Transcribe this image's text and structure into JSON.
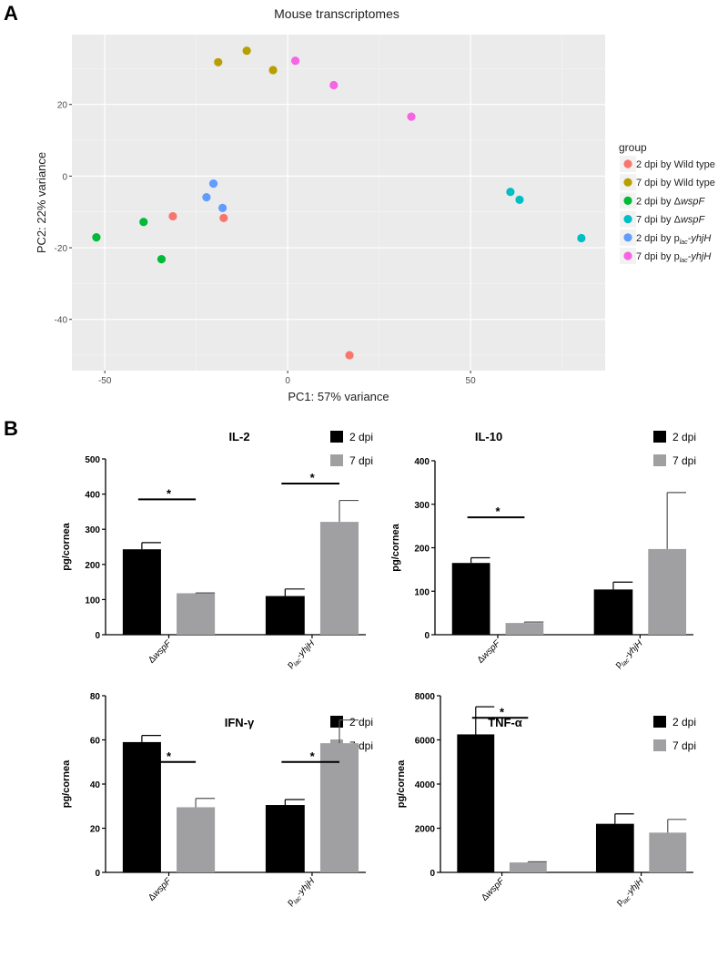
{
  "panels": {
    "a": "A",
    "b": "B"
  },
  "chart_data": [
    {
      "type": "scatter",
      "title": "Mouse transcriptomes",
      "xlabel": "PC1: 57% variance",
      "ylabel": "PC2: 22% variance",
      "xlim": [
        -59,
        86.8
      ],
      "ylim": [
        -54.3,
        39.5
      ],
      "xticks": [
        -50,
        0,
        50
      ],
      "yticks": [
        -40,
        -20,
        0,
        20
      ],
      "grid": true,
      "legend_title": "group",
      "legend_position": "right",
      "series": [
        {
          "name": "2 dpi by Wild type",
          "label": {
            "pre": "2 dpi by Wild type"
          },
          "color": "#F8766D",
          "points": [
            [
              -31.4,
              -11.2
            ],
            [
              -17.5,
              -11.7
            ],
            [
              16.9,
              -50.0
            ]
          ]
        },
        {
          "name": "7 dpi by Wild type",
          "label": {
            "pre": "7 dpi by Wild type"
          },
          "color": "#B79F00",
          "points": [
            [
              -19.0,
              31.8
            ],
            [
              -11.2,
              35.0
            ],
            [
              -4.0,
              29.6
            ]
          ]
        },
        {
          "name": "2 dpi by ΔwspF",
          "label": {
            "pre": "2 dpi by Δ",
            "it": "wspF"
          },
          "color": "#00BA38",
          "points": [
            [
              -52.3,
              -17.1
            ],
            [
              -39.4,
              -12.8
            ],
            [
              -34.5,
              -23.2
            ]
          ]
        },
        {
          "name": "7 dpi by ΔwspF",
          "label": {
            "pre": "7 dpi by Δ",
            "it": "wspF"
          },
          "color": "#00BFC4",
          "points": [
            [
              60.9,
              -4.4
            ],
            [
              63.4,
              -6.6
            ],
            [
              80.3,
              -17.3
            ]
          ]
        },
        {
          "name": "2 dpi by plac-yhjH",
          "label": {
            "pre": "2 dpi by p",
            "sub": "lac",
            "it": "-yhjH"
          },
          "color": "#619CFF",
          "points": [
            [
              -20.3,
              -2.1
            ],
            [
              -22.2,
              -5.9
            ],
            [
              -17.8,
              -8.9
            ]
          ]
        },
        {
          "name": "7 dpi by plac-yhjH",
          "label": {
            "pre": "7 dpi by p",
            "sub": "lac",
            "it": "-yhjH"
          },
          "color": "#F564E3",
          "points": [
            [
              2.1,
              32.2
            ],
            [
              12.6,
              25.4
            ],
            [
              33.8,
              16.6
            ]
          ]
        }
      ]
    },
    {
      "type": "bar",
      "title": "IL-2",
      "ylabel": "pg/cornea",
      "ylim": [
        0,
        500
      ],
      "yticks": [
        0,
        100,
        200,
        300,
        400,
        500
      ],
      "categories": [
        {
          "pre": "Δ",
          "it": "wspF"
        },
        {
          "pre": "p",
          "sub": "lac",
          "it": "-yhjH"
        }
      ],
      "series": [
        {
          "name": "2 dpi",
          "color": "#000000",
          "values": [
            243,
            110
          ],
          "errors": [
            19,
            20
          ]
        },
        {
          "name": "7 dpi",
          "color": "#a0a0a2",
          "values": [
            118,
            321
          ],
          "errors": [
            1,
            61
          ]
        }
      ],
      "significance": [
        {
          "category": 0,
          "y": 385,
          "label": "*"
        },
        {
          "category": 1,
          "y": 430,
          "label": "*"
        }
      ]
    },
    {
      "type": "bar",
      "title": "IL-10",
      "ylabel": "pg/cornea",
      "ylim": [
        0,
        400
      ],
      "yticks": [
        0,
        100,
        200,
        300,
        400
      ],
      "categories": [
        {
          "pre": "Δ",
          "it": "wspF"
        },
        {
          "pre": "p",
          "sub": "lac",
          "it": "-yhjH"
        }
      ],
      "series": [
        {
          "name": "2 dpi",
          "color": "#000000",
          "values": [
            165,
            104
          ],
          "errors": [
            12,
            17
          ]
        },
        {
          "name": "7 dpi",
          "color": "#a0a0a2",
          "values": [
            27,
            197
          ],
          "errors": [
            2,
            130
          ]
        }
      ],
      "significance": [
        {
          "category": 0,
          "y": 270,
          "label": "*"
        }
      ]
    },
    {
      "type": "bar",
      "title": "IFN-γ",
      "ylabel": "pg/cornea",
      "ylim": [
        0,
        80
      ],
      "yticks": [
        0,
        20,
        40,
        60,
        80
      ],
      "categories": [
        {
          "pre": "Δ",
          "it": "wspF"
        },
        {
          "pre": "p",
          "sub": "lac",
          "it": "-yhjH"
        }
      ],
      "series": [
        {
          "name": "2 dpi",
          "color": "#000000",
          "values": [
            59,
            30.5
          ],
          "errors": [
            3,
            2.5
          ]
        },
        {
          "name": "7 dpi",
          "color": "#a0a0a2",
          "values": [
            29.5,
            58.5
          ],
          "errors": [
            4,
            10.5
          ]
        }
      ],
      "significance": [
        {
          "category": 0,
          "y": 50,
          "label": "*"
        },
        {
          "category": 1,
          "y": 50,
          "label": "*"
        }
      ]
    },
    {
      "type": "bar",
      "title": "TNF-α",
      "ylabel": "pg/cornea",
      "ylim": [
        0,
        8000
      ],
      "yticks": [
        0,
        2000,
        4000,
        6000,
        8000
      ],
      "categories": [
        {
          "pre": "Δ",
          "it": "wspF"
        },
        {
          "pre": "p",
          "sub": "lac",
          "it": "-yhjH"
        }
      ],
      "series": [
        {
          "name": "2 dpi",
          "color": "#000000",
          "values": [
            6250,
            2200
          ],
          "errors": [
            1250,
            450
          ]
        },
        {
          "name": "7 dpi",
          "color": "#a0a0a2",
          "values": [
            450,
            1800
          ],
          "errors": [
            30,
            600
          ]
        }
      ],
      "significance": [
        {
          "category": 0,
          "y": 7000,
          "label": "*"
        }
      ]
    }
  ]
}
